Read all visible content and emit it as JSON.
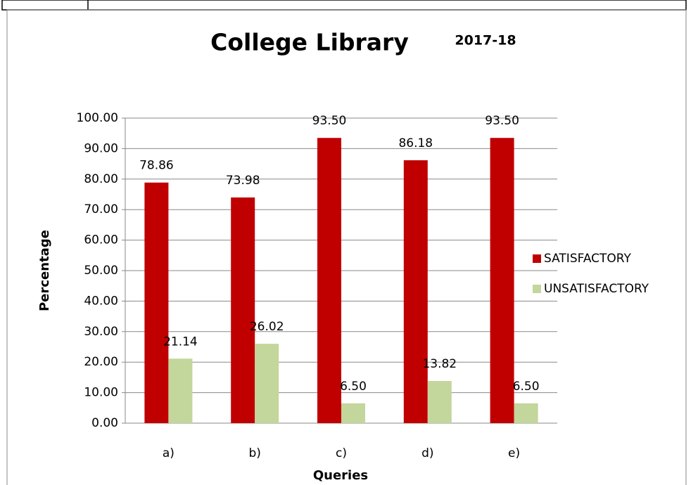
{
  "chart_data": {
    "type": "bar",
    "title": "College Library",
    "subtitle": "2017-18",
    "x_label": "Queries",
    "y_label": "Percentage",
    "categories": [
      "a)",
      "b)",
      "c)",
      "d)",
      "e)"
    ],
    "series": [
      {
        "name": "SATISFACTORY",
        "color": "#c00000",
        "values": [
          78.86,
          73.98,
          93.5,
          86.18,
          93.5
        ],
        "value_labels": [
          "78.86",
          "73.98",
          "93.50",
          "86.18",
          "93.50"
        ]
      },
      {
        "name": "UNSATISFACTORY",
        "color": "#c3d69b",
        "values": [
          21.14,
          26.02,
          6.5,
          13.82,
          6.5
        ],
        "value_labels": [
          "21.14",
          "26.02",
          "6.50",
          "13.82",
          "6.50"
        ]
      }
    ],
    "ylim": [
      0,
      100
    ],
    "yticks": [
      {
        "value": 0,
        "label": "0.00"
      },
      {
        "value": 10,
        "label": "10.00"
      },
      {
        "value": 20,
        "label": "20.00"
      },
      {
        "value": 30,
        "label": "30.00"
      },
      {
        "value": 40,
        "label": "40.00"
      },
      {
        "value": 50,
        "label": "50.00"
      },
      {
        "value": 60,
        "label": "60.00"
      },
      {
        "value": 70,
        "label": "70.00"
      },
      {
        "value": 80,
        "label": "80.00"
      },
      {
        "value": 90,
        "label": "90.00"
      },
      {
        "value": 100,
        "label": "100.00"
      }
    ],
    "grid": true,
    "legend": "right"
  }
}
